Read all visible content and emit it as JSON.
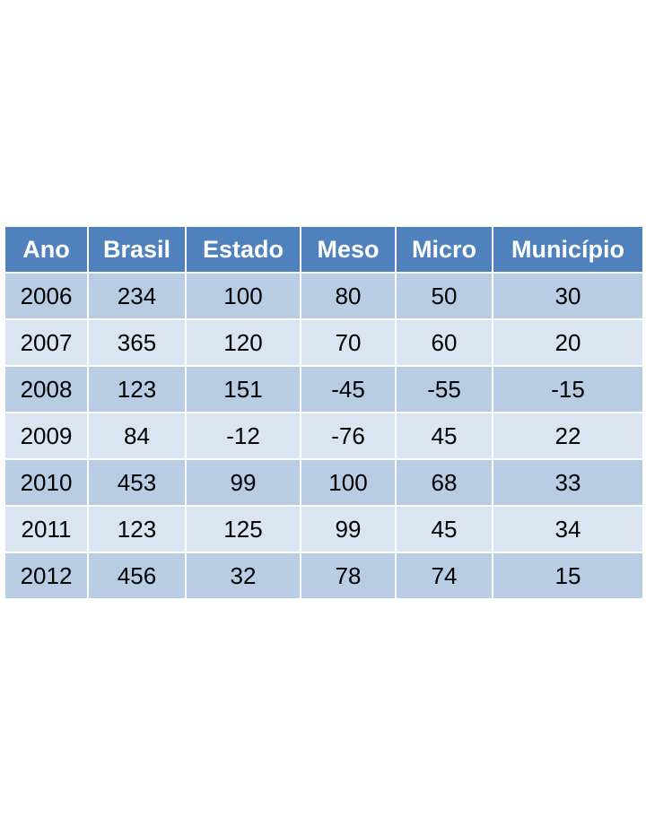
{
  "table": {
    "headers": [
      "Ano",
      "Brasil",
      "Estado",
      "Meso",
      "Micro",
      "Município"
    ],
    "rows": [
      [
        "2006",
        "234",
        "100",
        "80",
        "50",
        "30"
      ],
      [
        "2007",
        "365",
        "120",
        "70",
        "60",
        "20"
      ],
      [
        "2008",
        "123",
        "151",
        "-45",
        "-55",
        "-15"
      ],
      [
        "2009",
        "84",
        "-12",
        "-76",
        "45",
        "22"
      ],
      [
        "2010",
        "453",
        "99",
        "100",
        "68",
        "33"
      ],
      [
        "2011",
        "123",
        "125",
        "99",
        "45",
        "34"
      ],
      [
        "2012",
        "456",
        "32",
        "78",
        "74",
        "15"
      ]
    ]
  },
  "colors": {
    "header_bg": "#4f81bd",
    "row_odd_bg": "#b8cce4",
    "row_even_bg": "#dbe5f1"
  }
}
